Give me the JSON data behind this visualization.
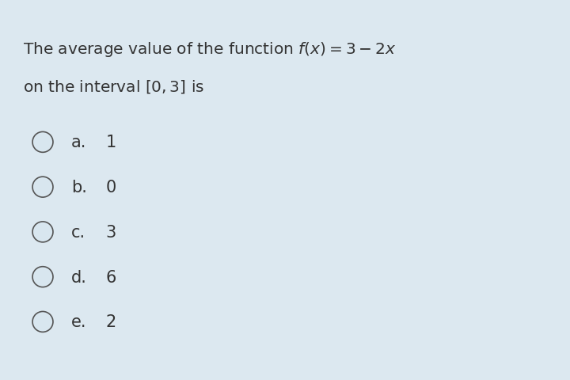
{
  "background_color": "#dce8f0",
  "title_line1": "The average value of the function $f(x) = 3 - 2x$",
  "title_line2": "on the interval $[0, 3]$ is",
  "options": [
    {
      "label": "a.",
      "value": "1"
    },
    {
      "label": "b.",
      "value": "0"
    },
    {
      "label": "c.",
      "value": "3"
    },
    {
      "label": "d.",
      "value": "6"
    },
    {
      "label": "e.",
      "value": "2"
    }
  ],
  "circle_edge_color": "#555555",
  "circle_fill_color": "#d8e6ef",
  "text_color": "#333333",
  "title_fontsize": 14.5,
  "option_fontsize": 15,
  "fig_width": 7.2,
  "fig_height": 4.81
}
